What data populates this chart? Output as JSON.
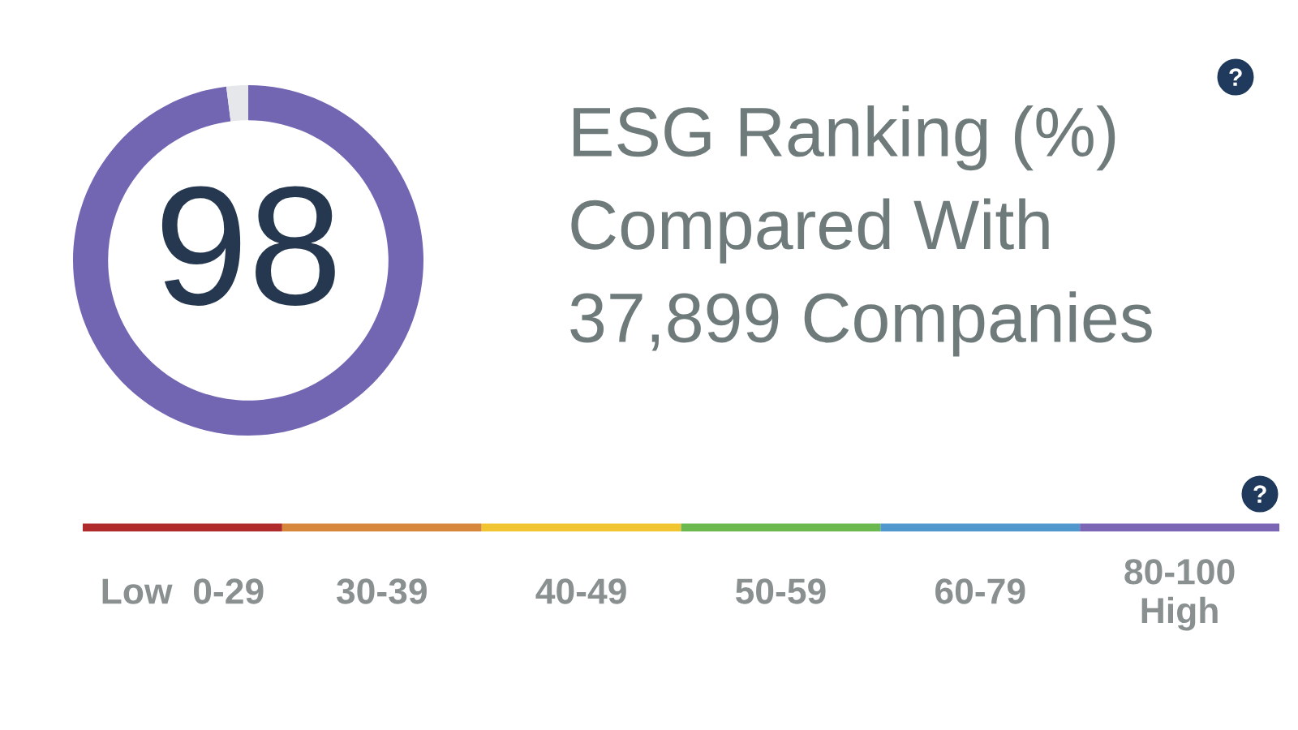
{
  "chart_data": [
    {
      "type": "donut",
      "title": "ESG Ranking (%)\nCompared With\n37,899 Companies",
      "categories": [
        null,
        null
      ],
      "values": [
        98,
        2
      ],
      "colors": [
        "#7266b3",
        "#e6e7ea"
      ],
      "value_labels": [
        "98",
        null
      ]
    },
    {
      "type": "other",
      "categories": [
        "Low  0-29",
        "30-39",
        "40-49",
        "50-59",
        "60-79",
        "80-100\nHigh"
      ],
      "colors": [
        "#b02b2b",
        "#d6873c",
        "#f0c531",
        "#6bb84f",
        "#4f97cc",
        "#7b66b5"
      ]
    }
  ]
}
